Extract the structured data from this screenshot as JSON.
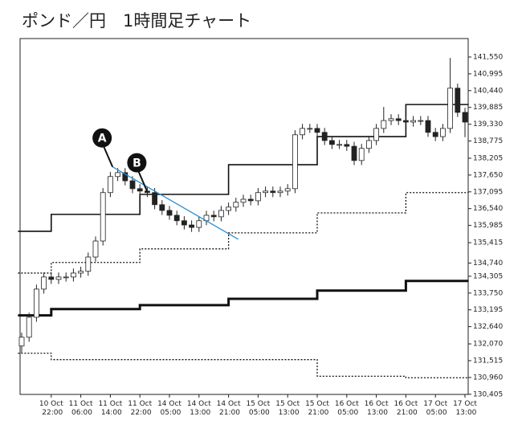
{
  "chart_data": {
    "type": "candlestick",
    "title": "ポンド／円　1時間足チャート",
    "categories": [
      null,
      null,
      null,
      null,
      "10 Oct 22:00",
      null,
      null,
      null,
      "11 Oct 06:00",
      null,
      null,
      null,
      "11 Oct 14:00",
      null,
      null,
      null,
      "11 Oct 22:00",
      null,
      null,
      null,
      "14 Oct 05:00",
      null,
      null,
      null,
      "14 Oct 13:00",
      null,
      null,
      null,
      "14 Oct 21:00",
      null,
      null,
      null,
      "15 Oct 05:00",
      null,
      null,
      null,
      "15 Oct 13:00",
      null,
      null,
      null,
      "15 Oct 21:00",
      null,
      null,
      null,
      "16 Oct 05:00",
      null,
      null,
      null,
      "16 Oct 13:00",
      null,
      null,
      null,
      "16 Oct 21:00",
      null,
      null,
      null,
      "17 Oct 05:00",
      null,
      null,
      null,
      "17 Oct 13:00"
    ],
    "open": [
      132.0,
      132.29,
      132.95,
      133.88,
      134.28,
      134.2,
      134.28,
      134.28,
      134.41,
      134.47,
      134.94,
      135.47,
      137.07,
      137.6,
      137.73,
      137.46,
      137.2,
      137.12,
      137.07,
      136.67,
      136.48,
      136.32,
      136.14,
      136.0,
      135.92,
      136.14,
      136.32,
      136.27,
      136.48,
      136.59,
      136.75,
      136.85,
      136.8,
      137.07,
      137.12,
      137.07,
      137.12,
      137.2,
      138.98,
      139.19,
      139.19,
      139.06,
      138.79,
      138.66,
      138.66,
      138.6,
      138.13,
      138.53,
      138.79,
      139.19,
      139.45,
      139.51,
      139.45,
      139.4,
      139.45,
      139.45,
      139.06,
      138.92,
      139.19,
      140.52,
      139.72
    ],
    "high": [
      132.44,
      133.1,
      134.03,
      134.43,
      134.43,
      134.43,
      134.43,
      134.56,
      134.62,
      135.09,
      135.62,
      137.22,
      137.75,
      137.88,
      137.88,
      137.61,
      137.35,
      137.27,
      137.22,
      136.82,
      136.63,
      136.47,
      136.29,
      136.15,
      136.29,
      136.47,
      136.47,
      136.63,
      136.74,
      136.9,
      137.0,
      137.0,
      137.22,
      137.27,
      137.27,
      137.27,
      137.35,
      139.13,
      139.34,
      139.34,
      139.34,
      139.21,
      138.94,
      138.81,
      138.81,
      138.75,
      138.68,
      138.94,
      139.34,
      139.9,
      139.66,
      139.66,
      139.6,
      139.6,
      139.6,
      139.6,
      139.21,
      139.34,
      141.52,
      140.67,
      139.87
    ],
    "low": [
      131.76,
      132.14,
      132.8,
      133.73,
      134.05,
      134.05,
      134.13,
      134.13,
      134.26,
      134.32,
      134.79,
      135.32,
      136.92,
      137.45,
      137.31,
      137.05,
      136.97,
      136.92,
      136.52,
      136.33,
      136.17,
      135.99,
      135.85,
      135.77,
      135.77,
      135.99,
      136.12,
      136.12,
      136.33,
      136.44,
      136.6,
      136.65,
      136.65,
      136.92,
      136.92,
      136.92,
      136.97,
      137.05,
      138.83,
      139.04,
      138.91,
      138.64,
      138.51,
      138.51,
      138.45,
      137.98,
      137.98,
      138.38,
      138.64,
      139.04,
      139.3,
      139.3,
      139.25,
      139.25,
      139.3,
      138.91,
      138.77,
      138.77,
      139.04,
      139.57,
      138.9
    ],
    "close": [
      132.29,
      132.95,
      133.88,
      134.28,
      134.2,
      134.28,
      134.28,
      134.41,
      134.47,
      134.94,
      135.47,
      137.07,
      137.6,
      137.73,
      137.46,
      137.2,
      137.12,
      137.07,
      136.67,
      136.48,
      136.32,
      136.14,
      136.0,
      135.92,
      136.14,
      136.32,
      136.27,
      136.48,
      136.59,
      136.75,
      136.85,
      136.8,
      137.07,
      137.12,
      137.07,
      137.12,
      137.2,
      138.98,
      139.19,
      139.19,
      139.06,
      138.79,
      138.66,
      138.66,
      138.6,
      138.13,
      138.53,
      138.79,
      139.19,
      139.45,
      139.51,
      139.45,
      139.4,
      139.45,
      139.45,
      139.06,
      138.92,
      139.19,
      140.52,
      139.72,
      139.4
    ],
    "series": [
      {
        "color": "#111111",
        "line_style": "solid",
        "values": [
          135.79,
          135.79,
          135.79,
          135.79,
          136.35,
          136.35,
          136.35,
          136.35,
          136.35,
          136.35,
          136.35,
          136.35,
          136.35,
          136.35,
          136.35,
          136.35,
          137.01,
          137.01,
          137.01,
          137.01,
          137.01,
          137.01,
          137.01,
          137.01,
          137.01,
          137.01,
          137.01,
          137.01,
          137.99,
          137.99,
          137.99,
          137.99,
          137.99,
          137.99,
          137.99,
          137.99,
          137.99,
          137.99,
          137.99,
          137.99,
          138.92,
          138.92,
          138.92,
          138.92,
          138.92,
          138.92,
          138.92,
          138.92,
          138.92,
          138.92,
          138.92,
          138.92,
          139.98,
          139.98,
          139.98,
          139.98,
          139.98,
          139.98,
          139.98,
          139.98,
          139.98
        ]
      },
      {
        "color": "#111111",
        "line_style": "thick",
        "values": [
          133.01,
          133.01,
          133.01,
          133.01,
          133.22,
          133.22,
          133.22,
          133.22,
          133.22,
          133.22,
          133.22,
          133.22,
          133.22,
          133.22,
          133.22,
          133.22,
          133.35,
          133.35,
          133.35,
          133.35,
          133.35,
          133.35,
          133.35,
          133.35,
          133.35,
          133.35,
          133.35,
          133.35,
          133.56,
          133.56,
          133.56,
          133.56,
          133.56,
          133.56,
          133.56,
          133.56,
          133.56,
          133.56,
          133.56,
          133.56,
          133.83,
          133.83,
          133.83,
          133.83,
          133.83,
          133.83,
          133.83,
          133.83,
          133.83,
          133.83,
          133.83,
          133.83,
          134.15,
          134.15,
          134.15,
          134.15,
          134.15,
          134.15,
          134.15,
          134.15,
          134.15
        ]
      },
      {
        "color": "#111111",
        "line_style": "dotted",
        "values": [
          134.41,
          134.41,
          134.41,
          134.41,
          134.76,
          134.76,
          134.76,
          134.76,
          134.76,
          134.76,
          134.76,
          134.76,
          134.76,
          134.76,
          134.76,
          134.76,
          135.21,
          135.21,
          135.21,
          135.21,
          135.21,
          135.21,
          135.21,
          135.21,
          135.21,
          135.21,
          135.21,
          135.21,
          135.74,
          135.74,
          135.74,
          135.74,
          135.74,
          135.74,
          135.74,
          135.74,
          135.74,
          135.74,
          135.74,
          135.74,
          136.4,
          136.4,
          136.4,
          136.4,
          136.4,
          136.4,
          136.4,
          136.4,
          136.4,
          136.4,
          136.4,
          136.4,
          137.07,
          137.07,
          137.07,
          137.07,
          137.07,
          137.07,
          137.07,
          137.07,
          137.07
        ]
      },
      {
        "color": "#111111",
        "line_style": "dotted",
        "values": [
          131.76,
          131.76,
          131.76,
          131.76,
          131.55,
          131.55,
          131.55,
          131.55,
          131.55,
          131.55,
          131.55,
          131.55,
          131.55,
          131.55,
          131.55,
          131.55,
          131.55,
          131.55,
          131.55,
          131.55,
          131.55,
          131.55,
          131.55,
          131.55,
          131.55,
          131.55,
          131.55,
          131.55,
          131.55,
          131.55,
          131.55,
          131.55,
          131.55,
          131.55,
          131.55,
          131.55,
          131.55,
          131.55,
          131.55,
          131.55,
          131.0,
          131.0,
          131.0,
          131.0,
          131.0,
          131.0,
          131.0,
          131.0,
          131.0,
          131.0,
          131.0,
          131.0,
          130.95,
          130.95,
          130.95,
          130.95,
          130.95,
          130.95,
          130.95,
          130.95,
          130.95
        ]
      }
    ],
    "trendline": {
      "color": "#2a8fd0",
      "x": [
        12.3,
        29.3
      ],
      "y": [
        137.92,
        135.53
      ]
    },
    "annotations": [
      {
        "text": "A",
        "x": 12.3,
        "y": 137.92
      },
      {
        "text": "B",
        "x": 17,
        "y": 137.1
      }
    ],
    "ylim": [
      130.4,
      142.16
    ],
    "yticks": [
      {
        "value": 141.55,
        "label": "141,550"
      },
      {
        "value": 140.995,
        "label": "140,995"
      },
      {
        "value": 140.44,
        "label": "140,440"
      },
      {
        "value": 139.885,
        "label": "139,885"
      },
      {
        "value": 139.33,
        "label": "139,330"
      },
      {
        "value": 138.775,
        "label": "138,775"
      },
      {
        "value": 138.205,
        "label": "138,205"
      },
      {
        "value": 137.65,
        "label": "137,650"
      },
      {
        "value": 137.095,
        "label": "137,095"
      },
      {
        "value": 136.54,
        "label": "136,540"
      },
      {
        "value": 135.985,
        "label": "135,985"
      },
      {
        "value": 135.415,
        "label": "135,415"
      },
      {
        "value": 134.74,
        "label": "134,740"
      },
      {
        "value": 134.305,
        "label": "134,305"
      },
      {
        "value": 133.75,
        "label": "133,750"
      },
      {
        "value": 133.195,
        "label": "133,195"
      },
      {
        "value": 132.64,
        "label": "132,640"
      },
      {
        "value": 132.07,
        "label": "132,070"
      },
      {
        "value": 131.515,
        "label": "131,515"
      },
      {
        "value": 130.96,
        "label": "130,960"
      },
      {
        "value": 130.405,
        "label": "130,405"
      }
    ]
  }
}
